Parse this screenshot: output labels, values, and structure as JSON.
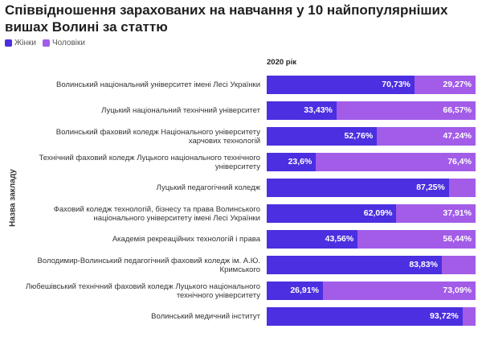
{
  "title": "Співвідношення зарахованих на навчання у 10 найпопулярніших вишах Волині за статтю",
  "legend": [
    {
      "label": "Жінки",
      "color": "#4b2fe0"
    },
    {
      "label": "Чоловіки",
      "color": "#a25ce8"
    }
  ],
  "column_header": "2020 рік",
  "ylabel": "Назва закладу",
  "chart_data": {
    "type": "bar",
    "orientation": "horizontal",
    "stacked": "100%",
    "categories": [
      "Волинський національний університет імені Лесі Українки",
      "Луцький національний технічний університет",
      "Волинський фаховий коледж Національного університету харчових технологій",
      "Технічний фаховий коледж Луцького національного технічного університету",
      "Луцький педагогічний коледж",
      "Фаховий коледж технологій, бізнесу та права Волинського національного університету імені Лесі Українки",
      "Академія рекреаційних технологій і права",
      "Володимир-Волинський педагогічний фаховий коледж ім. А.Ю. Кримського",
      "Любешівський технічний фаховий коледж Луцького національного технічного університету",
      "Волинський медичний інститут"
    ],
    "series": [
      {
        "name": "Жінки",
        "color": "#4b2fe0",
        "values": [
          70.73,
          33.43,
          52.76,
          23.6,
          87.25,
          62.09,
          43.56,
          83.83,
          26.91,
          93.72
        ],
        "labels": [
          "70,73%",
          "33,43%",
          "52,76%",
          "23,6%",
          "87,25%",
          "62,09%",
          "43,56%",
          "83,83%",
          "26,91%",
          "93,72%"
        ]
      },
      {
        "name": "Чоловіки",
        "color": "#a25ce8",
        "values": [
          29.27,
          66.57,
          47.24,
          76.4,
          12.75,
          37.91,
          56.44,
          16.17,
          73.09,
          6.28
        ],
        "labels": [
          "29,27%",
          "66,57%",
          "47,24%",
          "76,4%",
          "",
          "37,91%",
          "56,44%",
          "",
          "73,09%",
          ""
        ]
      }
    ],
    "xlim": [
      0,
      100
    ],
    "xlabel": "2020 рік",
    "ylabel": "Назва закладу",
    "legend_position": "top-left"
  }
}
